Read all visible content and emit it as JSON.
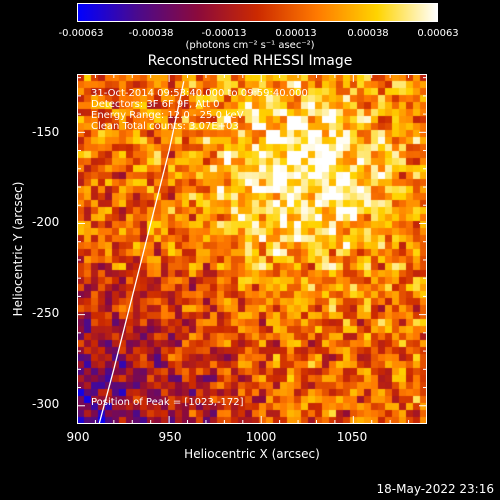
{
  "colorbar": {
    "ticks": [
      "-0.00063",
      "-0.00038",
      "-0.00013",
      "0.00013",
      "0.00038",
      "0.00063"
    ],
    "units": "(photons cm⁻² s⁻¹ asec⁻²)",
    "colors": [
      "#0000ff",
      "#4b0a8c",
      "#8b0a3c",
      "#cc2a00",
      "#ff7a00",
      "#ffd400",
      "#ffffff"
    ]
  },
  "chart_data": {
    "type": "heatmap",
    "title": "Reconstructed RHESSI Image",
    "xlabel": "Heliocentric X (arcsec)",
    "ylabel": "Heliocentric Y (arcsec)",
    "xlim": [
      900,
      1090
    ],
    "ylim": [
      -310,
      -118
    ],
    "xticks": [
      900,
      950,
      1000,
      1050
    ],
    "yticks": [
      -150,
      -200,
      -250,
      -300
    ],
    "value_range": [
      -0.00063,
      0.00063
    ],
    "peak": [
      1023,
      -172
    ],
    "limb_curve": {
      "x": [
        912,
        920,
        930,
        940,
        950,
        958
      ],
      "y": [
        -310,
        -280,
        -240,
        -200,
        -160,
        -122
      ]
    }
  },
  "annotations": {
    "time": "31-Oct-2014 09:53:40.000 to 09:59:40.000",
    "detectors": "Detectors: 3F 6F 9F, Att 0",
    "energy": "Energy Range: 12.0 - 25.0 keV",
    "method": "Clean     Total counts: 3.07E+03",
    "peak": "Position of Peak = [1023,-172]"
  },
  "timestamp": "18-May-2022 23:16"
}
